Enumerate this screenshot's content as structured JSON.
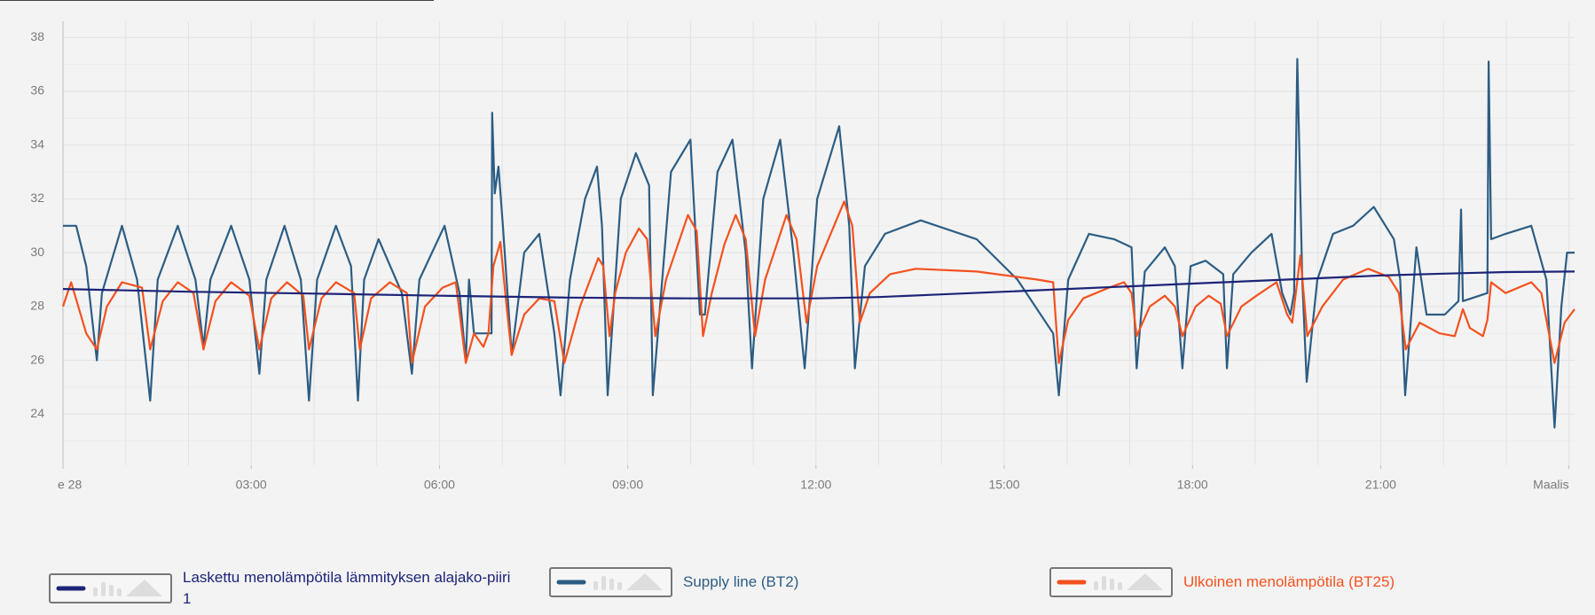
{
  "chart_data": {
    "type": "line",
    "xlim": [
      0,
      24.09
    ],
    "ylim": [
      22.1,
      38.6
    ],
    "xticks": [
      {
        "value": 0,
        "label": "e 28"
      },
      {
        "value": 3,
        "label": "03:00"
      },
      {
        "value": 6,
        "label": "06:00"
      },
      {
        "value": 9,
        "label": "09:00"
      },
      {
        "value": 12,
        "label": "12:00"
      },
      {
        "value": 15,
        "label": "15:00"
      },
      {
        "value": 18,
        "label": "18:00"
      },
      {
        "value": 21,
        "label": "21:00"
      },
      {
        "value": 24,
        "label": "Maalis"
      }
    ],
    "x_grid": [
      0,
      1,
      2,
      3,
      4,
      5,
      6,
      7,
      8,
      9,
      10,
      11,
      12,
      13,
      14,
      15,
      16,
      17,
      18,
      19,
      20,
      21,
      22,
      23,
      24
    ],
    "yticks": [
      24,
      26,
      28,
      30,
      32,
      34,
      36,
      38
    ],
    "y_minor_ticks": [
      23,
      25,
      27,
      29,
      31,
      33,
      35,
      37
    ],
    "grid": true,
    "series": [
      {
        "name": "Laskettu menolämpötila lämmityksen alajako-piiri 1",
        "color": "#1c2478",
        "x": [
          0,
          2,
          4,
          6,
          8,
          10,
          12,
          13,
          14,
          15,
          16,
          17,
          18,
          19,
          20,
          21,
          22,
          23,
          24.09
        ],
        "values": [
          28.65,
          28.55,
          28.48,
          28.4,
          28.33,
          28.3,
          28.3,
          28.35,
          28.45,
          28.55,
          28.65,
          28.75,
          28.85,
          28.95,
          29.05,
          29.15,
          29.22,
          29.28,
          29.3
        ]
      },
      {
        "name": "Supply line (BT2)",
        "color": "#2c5d84",
        "x": [
          0,
          0.21,
          0.37,
          0.49,
          0.54,
          0.62,
          0.94,
          1.18,
          1.39,
          1.51,
          1.83,
          2.11,
          2.24,
          2.35,
          2.68,
          2.97,
          3.13,
          3.24,
          3.53,
          3.79,
          3.92,
          4.05,
          4.35,
          4.59,
          4.7,
          4.8,
          5.03,
          5.4,
          5.56,
          5.68,
          6.08,
          6.32,
          6.42,
          6.47,
          6.55,
          6.83,
          6.84,
          6.88,
          6.94,
          7.01,
          7.15,
          7.35,
          7.59,
          7.83,
          7.93,
          8.08,
          8.32,
          8.51,
          8.59,
          8.68,
          8.89,
          9.13,
          9.34,
          9.4,
          9.69,
          10,
          10.15,
          10.23,
          10.43,
          10.67,
          10.88,
          10.98,
          11.16,
          11.43,
          11.64,
          11.82,
          12.02,
          12.37,
          12.53,
          12.62,
          12.78,
          13.1,
          13.67,
          14.56,
          15.21,
          15.78,
          15.87,
          16.02,
          16.35,
          16.75,
          17.03,
          17.11,
          17.24,
          17.56,
          17.72,
          17.84,
          17.97,
          18.21,
          18.49,
          18.55,
          18.65,
          18.94,
          19.26,
          19.43,
          19.56,
          19.62,
          19.67,
          19.75,
          19.82,
          19.99,
          20.24,
          20.56,
          20.89,
          21.21,
          21.31,
          21.39,
          21.57,
          21.73,
          22.02,
          22.24,
          22.28,
          22.31,
          22.7,
          22.72,
          22.76,
          22.99,
          23.4,
          23.64,
          23.77,
          23.88,
          23.97,
          24.09
        ],
        "values": [
          31,
          31,
          29.5,
          27,
          26,
          28.5,
          31,
          29,
          24.5,
          29,
          31,
          29,
          26.5,
          29,
          31,
          29,
          25.5,
          29,
          31,
          29,
          24.5,
          29,
          31,
          29.5,
          24.5,
          29,
          30.5,
          28.5,
          25.5,
          29,
          31,
          28.5,
          26,
          29,
          27,
          27,
          35.2,
          32.2,
          33.2,
          31,
          26.2,
          30,
          30.7,
          27,
          24.7,
          29,
          32,
          33.2,
          31,
          24.7,
          32,
          33.7,
          32.5,
          24.7,
          33,
          34.2,
          27.7,
          27.7,
          33,
          34.2,
          30,
          25.7,
          32,
          34.2,
          30,
          25.7,
          32,
          34.7,
          31,
          25.7,
          29.5,
          30.7,
          31.2,
          30.5,
          29,
          27,
          24.7,
          29,
          30.7,
          30.5,
          30.2,
          25.7,
          29.3,
          30.2,
          29.5,
          25.7,
          29.5,
          29.7,
          29.2,
          25.7,
          29.2,
          30,
          30.7,
          28.5,
          27.7,
          28.5,
          37.2,
          29,
          25.2,
          29,
          30.7,
          31,
          31.7,
          30.5,
          29,
          24.7,
          30.2,
          27.7,
          27.7,
          28.2,
          31.6,
          28.2,
          28.5,
          37.1,
          30.5,
          30.7,
          31,
          29,
          23.5,
          28,
          30,
          30
        ]
      },
      {
        "name": "Ulkoinen menolämpötila (BT25)",
        "color": "#f4511e",
        "x": [
          0,
          0.13,
          0.37,
          0.54,
          0.7,
          0.94,
          1.26,
          1.39,
          1.59,
          1.83,
          2.08,
          2.24,
          2.43,
          2.68,
          2.97,
          3.13,
          3.32,
          3.57,
          3.83,
          3.92,
          4.12,
          4.35,
          4.64,
          4.73,
          4.91,
          5.21,
          5.48,
          5.56,
          5.77,
          6.05,
          6.26,
          6.42,
          6.55,
          6.7,
          6.78,
          6.86,
          6.97,
          7.07,
          7.15,
          7.35,
          7.59,
          7.83,
          7.99,
          8.24,
          8.53,
          8.61,
          8.71,
          8.8,
          8.97,
          9.18,
          9.31,
          9.44,
          9.61,
          9.96,
          10.1,
          10.2,
          10.34,
          10.54,
          10.72,
          10.88,
          11.03,
          11.19,
          11.53,
          11.69,
          11.85,
          12.02,
          12.45,
          12.58,
          12.7,
          12.86,
          13.18,
          13.59,
          14.56,
          15.53,
          15.78,
          15.87,
          16.02,
          16.26,
          16.67,
          16.91,
          17.03,
          17.11,
          17.32,
          17.56,
          17.72,
          17.84,
          18.05,
          18.26,
          18.45,
          18.55,
          18.78,
          19.02,
          19.34,
          19.51,
          19.59,
          19.72,
          19.83,
          20.07,
          20.4,
          20.8,
          21.13,
          21.29,
          21.4,
          21.62,
          21.94,
          22.18,
          22.31,
          22.42,
          22.63,
          22.7,
          22.76,
          22.99,
          23.4,
          23.56,
          23.77,
          23.93,
          24.09
        ],
        "values": [
          28,
          28.9,
          27,
          26.4,
          28,
          28.9,
          28.7,
          26.4,
          28.2,
          28.9,
          28.5,
          26.4,
          28.2,
          28.9,
          28.4,
          26.4,
          28.3,
          28.9,
          28.4,
          26.4,
          28.3,
          28.9,
          28.5,
          26.4,
          28.3,
          28.9,
          28.5,
          25.9,
          28,
          28.7,
          28.9,
          25.9,
          27,
          26.5,
          27,
          29.5,
          30.4,
          28,
          26.2,
          27.7,
          28.3,
          28.2,
          25.9,
          28,
          29.8,
          29.5,
          26.9,
          28.5,
          30,
          30.9,
          30.5,
          26.9,
          29,
          31.4,
          30.8,
          26.9,
          28.5,
          30.3,
          31.4,
          30.5,
          26.9,
          29,
          31.4,
          30.5,
          27.4,
          29.5,
          31.9,
          31,
          27.4,
          28.5,
          29.2,
          29.4,
          29.3,
          29,
          28.9,
          25.9,
          27.5,
          28.3,
          28.7,
          28.9,
          28.5,
          26.9,
          28,
          28.4,
          28,
          26.9,
          28,
          28.4,
          28.1,
          26.9,
          28,
          28.4,
          28.9,
          27.7,
          27.4,
          29.9,
          26.9,
          28,
          29,
          29.4,
          29.1,
          28.5,
          26.4,
          27.4,
          27,
          26.9,
          27.9,
          27.2,
          26.9,
          27.5,
          28.9,
          28.5,
          28.9,
          28.5,
          25.9,
          27.4,
          27.9
        ]
      }
    ]
  }
}
